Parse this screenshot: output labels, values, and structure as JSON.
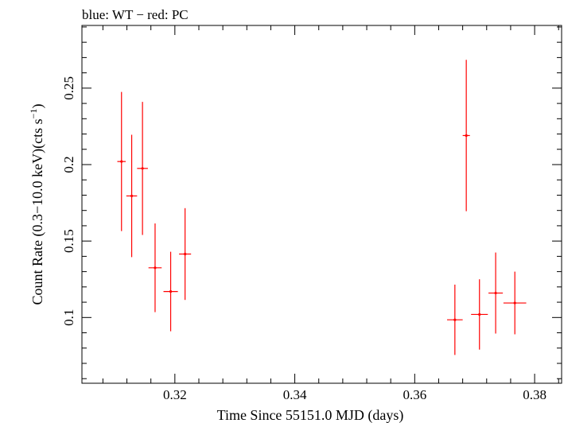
{
  "chart_data": {
    "type": "scatter",
    "title": "blue: WT − red: PC",
    "xlabel": "Time Since 55151.0 MJD (days)",
    "ylabel": "Count Rate (0.3−10.0 keV)(cts s",
    "ylabel_sup": "−1",
    "ylabel_end": ")",
    "xlim": [
      0.3045,
      0.3845
    ],
    "ylim": [
      0.057,
      0.291
    ],
    "x_ticks": [
      {
        "value": 0.32,
        "label": "0.32"
      },
      {
        "value": 0.34,
        "label": "0.34"
      },
      {
        "value": 0.36,
        "label": "0.36"
      },
      {
        "value": 0.38,
        "label": "0.38"
      }
    ],
    "y_ticks": [
      {
        "value": 0.1,
        "label": "0.1"
      },
      {
        "value": 0.15,
        "label": "0.15"
      },
      {
        "value": 0.2,
        "label": "0.2"
      },
      {
        "value": 0.25,
        "label": "0.25"
      }
    ],
    "grid": false,
    "series": [
      {
        "name": "PC",
        "color": "#ff0000",
        "points": [
          {
            "x": 0.3111,
            "y": 0.202,
            "xerr": 0.0007,
            "yerr": 0.0455
          },
          {
            "x": 0.3128,
            "y": 0.1795,
            "xerr": 0.0009,
            "yerr": 0.04
          },
          {
            "x": 0.3146,
            "y": 0.1975,
            "xerr": 0.0009,
            "yerr": 0.0435
          },
          {
            "x": 0.3167,
            "y": 0.1325,
            "xerr": 0.0011,
            "yerr": 0.029
          },
          {
            "x": 0.3193,
            "y": 0.117,
            "xerr": 0.0012,
            "yerr": 0.026
          },
          {
            "x": 0.3217,
            "y": 0.1415,
            "xerr": 0.001,
            "yerr": 0.03
          },
          {
            "x": 0.3667,
            "y": 0.0985,
            "xerr": 0.0013,
            "yerr": 0.023
          },
          {
            "x": 0.3686,
            "y": 0.219,
            "xerr": 0.0006,
            "yerr": 0.0495
          },
          {
            "x": 0.3708,
            "y": 0.102,
            "xerr": 0.0014,
            "yerr": 0.023
          },
          {
            "x": 0.3735,
            "y": 0.116,
            "xerr": 0.0012,
            "yerr": 0.0265
          },
          {
            "x": 0.3767,
            "y": 0.1095,
            "xerr": 0.0019,
            "yerr": 0.0205
          }
        ]
      }
    ]
  }
}
